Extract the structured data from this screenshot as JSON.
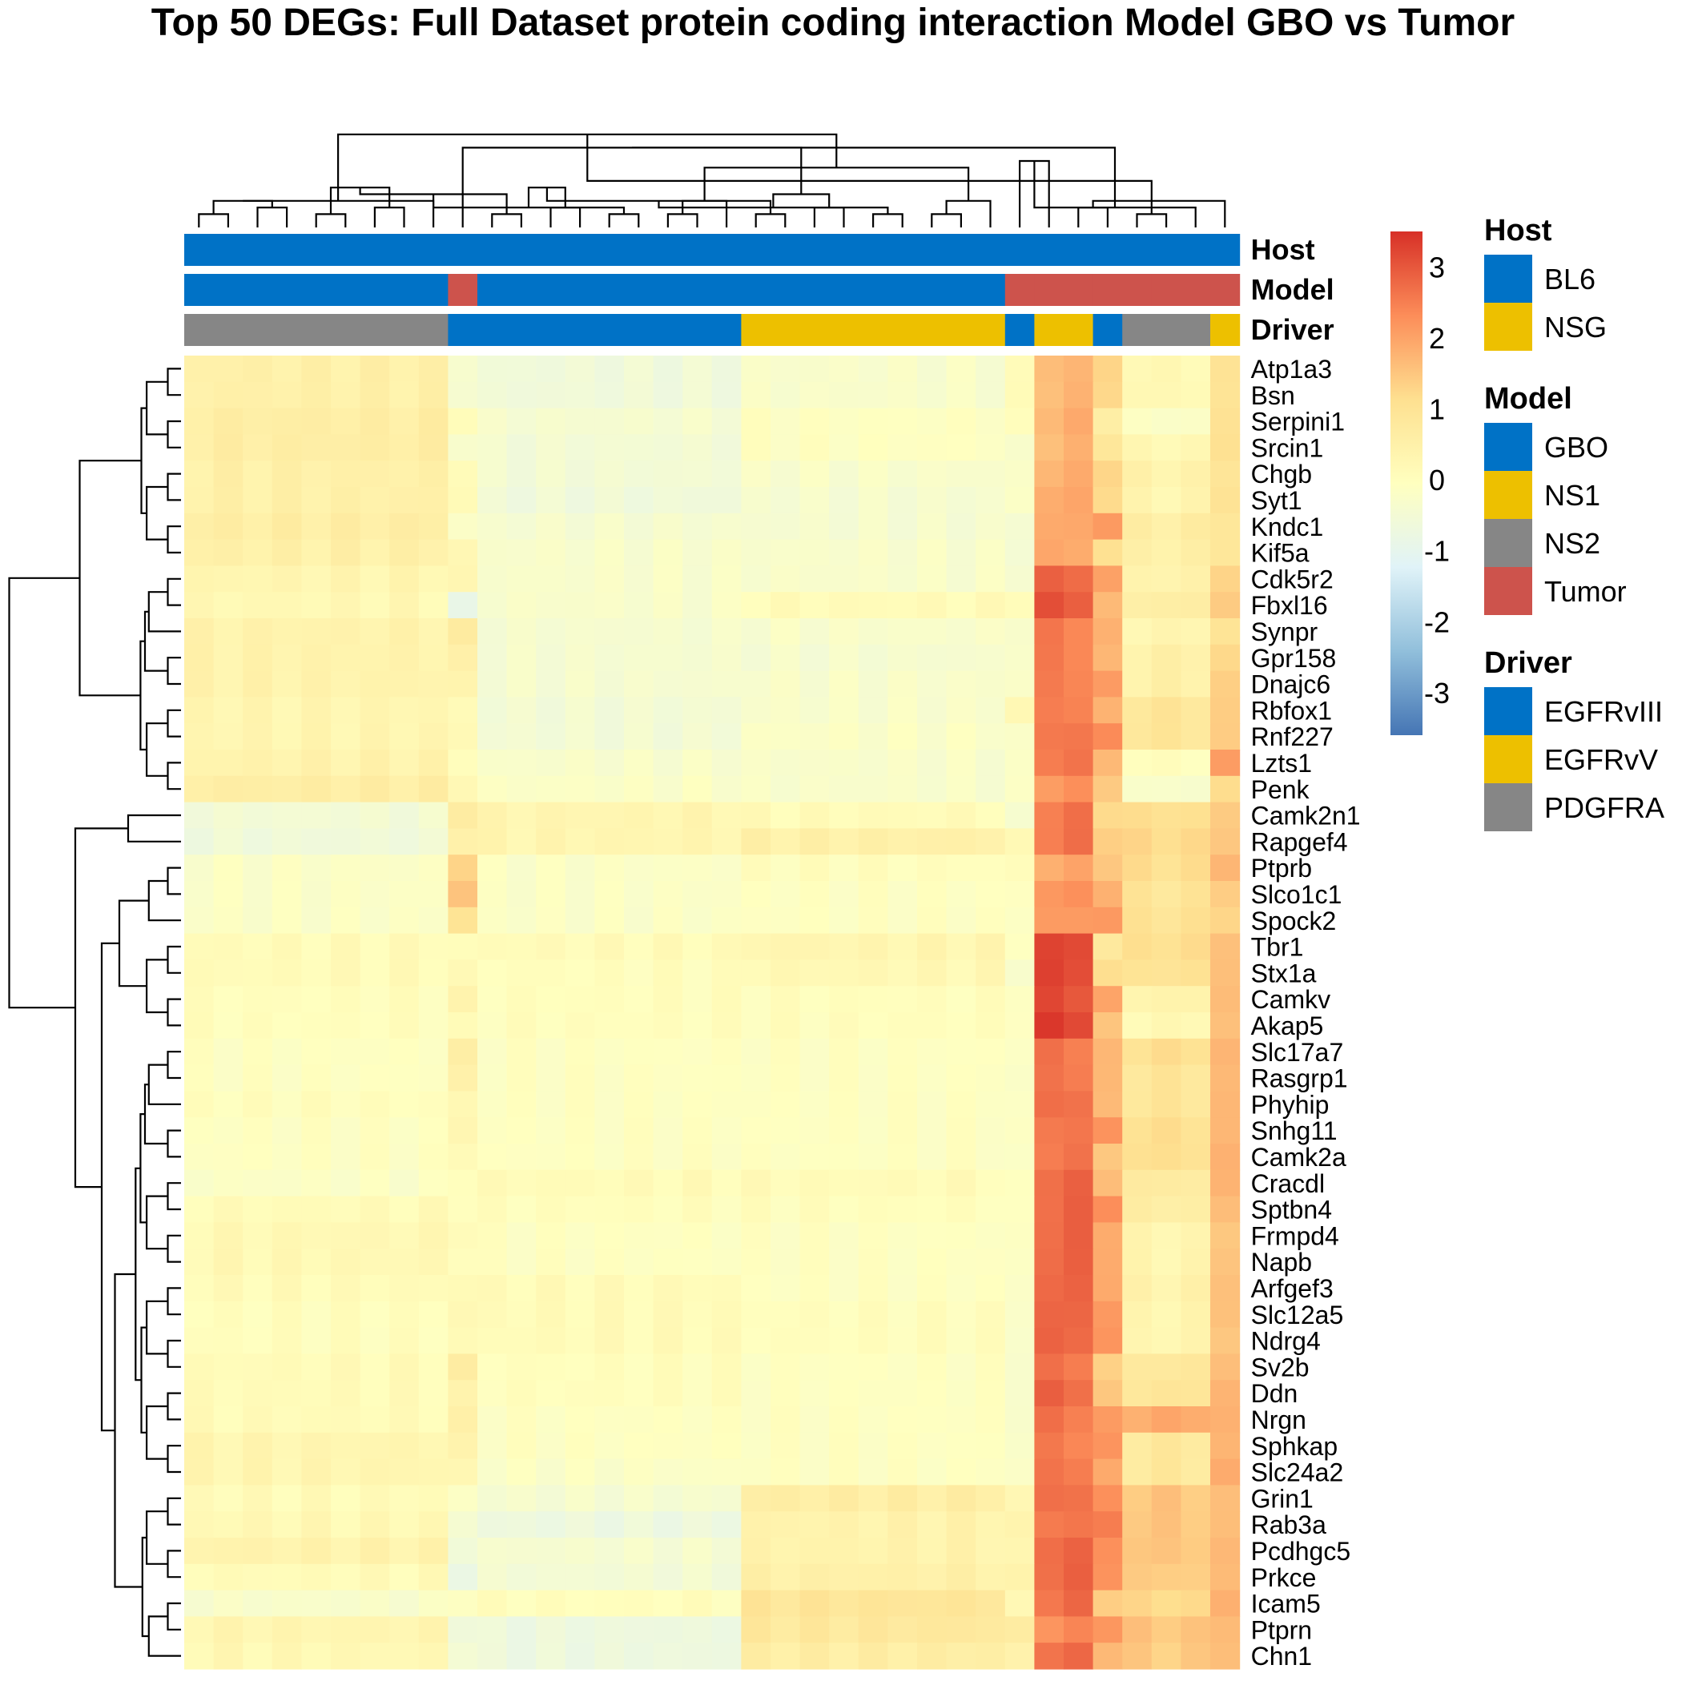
{
  "title": "Top 50 DEGs: Full Dataset protein coding interaction Model GBO vs Tumor",
  "chart_data": {
    "type": "heatmap",
    "title": "Top 50 DEGs: Full Dataset protein coding interaction Model GBO vs Tumor",
    "n_columns": 36,
    "rows": [
      "Atp1a3",
      "Bsn",
      "Serpini1",
      "Srcin1",
      "Chgb",
      "Syt1",
      "Kndc1",
      "Kif5a",
      "Cdk5r2",
      "Fbxl16",
      "Synpr",
      "Gpr158",
      "Dnajc6",
      "Rbfox1",
      "Rnf227",
      "Lzts1",
      "Penk",
      "Camk2n1",
      "Rapgef4",
      "Ptprb",
      "Slco1c1",
      "Spock2",
      "Tbr1",
      "Stx1a",
      "Camkv",
      "Akap5",
      "Slc17a7",
      "Rasgrp1",
      "Phyhip",
      "Snhg11",
      "Camk2a",
      "Cracdl",
      "Sptbn4",
      "Frmpd4",
      "Napb",
      "Arfgef3",
      "Slc12a5",
      "Ndrg4",
      "Sv2b",
      "Ddn",
      "Nrgn",
      "Sphkap",
      "Slc24a2",
      "Grin1",
      "Rab3a",
      "Pcdhgc5",
      "Prkce",
      "Icam5",
      "Ptprn",
      "Chn1"
    ],
    "group_boundaries": [
      9,
      10,
      19,
      28,
      29,
      31,
      32,
      35
    ],
    "group_means": [
      [
        0.5,
        -0.3,
        -0.6,
        -0.3,
        0.0,
        1.7,
        1.3,
        0.2,
        0.9,
        1.0,
        0.9
      ],
      [
        0.5,
        -0.3,
        -0.6,
        -0.3,
        0.0,
        1.7,
        1.3,
        0.2,
        0.9,
        1.0,
        0.9
      ],
      [
        0.6,
        0.2,
        -0.4,
        -0.1,
        -0.1,
        1.8,
        0.7,
        -0.2,
        1.0,
        1.1,
        1.1
      ],
      [
        0.6,
        -0.2,
        -0.5,
        -0.1,
        -0.4,
        1.7,
        1.0,
        0.2,
        1.1,
        1.2,
        1.2
      ],
      [
        0.5,
        0.2,
        -0.5,
        -0.3,
        -0.3,
        1.8,
        1.4,
        0.4,
        1.0,
        1.1,
        1.0
      ],
      [
        0.5,
        0.2,
        -0.6,
        -0.4,
        -0.2,
        1.9,
        1.3,
        0.3,
        1.1,
        1.1,
        1.1
      ],
      [
        0.6,
        -0.2,
        -0.4,
        -0.4,
        -0.4,
        1.9,
        2.2,
        0.6,
        1.0,
        1.1,
        1.0
      ],
      [
        0.5,
        0.2,
        -0.3,
        -0.3,
        -0.4,
        1.9,
        1.1,
        0.5,
        1.0,
        1.1,
        1.0
      ],
      [
        0.3,
        0.2,
        -0.3,
        -0.3,
        -0.3,
        2.8,
        2.0,
        0.4,
        1.4,
        1.1,
        0.5
      ],
      [
        0.2,
        -1.0,
        -0.3,
        0.1,
        0.2,
        3.0,
        1.6,
        0.6,
        1.5,
        1.2,
        0.8
      ],
      [
        0.4,
        0.6,
        -0.4,
        -0.3,
        -0.2,
        2.5,
        1.7,
        0.3,
        1.0,
        1.5,
        1.1
      ],
      [
        0.4,
        0.4,
        -0.4,
        -0.4,
        -0.2,
        2.5,
        1.6,
        0.5,
        1.2,
        1.4,
        1.3
      ],
      [
        0.4,
        0.3,
        -0.4,
        -0.3,
        -0.2,
        2.5,
        2.0,
        0.5,
        1.3,
        1.4,
        1.3
      ],
      [
        0.3,
        0.1,
        -0.5,
        -0.3,
        0.2,
        2.5,
        1.7,
        0.9,
        1.3,
        1.4,
        1.2
      ],
      [
        0.3,
        0.2,
        -0.5,
        -0.2,
        -0.3,
        2.6,
        2.3,
        0.9,
        1.3,
        1.4,
        1.2
      ],
      [
        0.4,
        0.1,
        -0.3,
        -0.3,
        -0.3,
        2.6,
        1.7,
        0.0,
        2.0,
        1.2,
        1.0
      ],
      [
        0.6,
        0.3,
        -0.2,
        -0.3,
        -0.3,
        2.2,
        1.5,
        -0.3,
        1.1,
        1.4,
        1.4
      ],
      [
        -0.5,
        0.8,
        0.3,
        0.1,
        -0.5,
        2.6,
        1.3,
        1.1,
        1.4,
        1.3,
        0.9
      ],
      [
        -0.6,
        0.6,
        0.3,
        0.5,
        0.1,
        2.6,
        1.5,
        1.2,
        1.5,
        1.3,
        0.7
      ],
      [
        -0.2,
        1.4,
        -0.2,
        0.0,
        0.0,
        1.9,
        1.6,
        1.1,
        1.8,
        1.4,
        1.2
      ],
      [
        -0.2,
        1.6,
        -0.2,
        -0.1,
        -0.1,
        2.2,
        1.9,
        0.9,
        1.5,
        1.4,
        1.2
      ],
      [
        -0.2,
        1.0,
        -0.2,
        -0.1,
        -0.1,
        2.1,
        2.2,
        1.0,
        1.4,
        1.4,
        1.3
      ],
      [
        0.1,
        0.0,
        0.1,
        0.3,
        0.0,
        3.2,
        0.8,
        1.1,
        1.7,
        1.4,
        0.4
      ],
      [
        0.1,
        0.1,
        0.0,
        0.2,
        -0.2,
        3.2,
        1.1,
        1.0,
        1.7,
        1.3,
        0.4
      ],
      [
        0.0,
        0.3,
        0.0,
        0.0,
        0.0,
        3.1,
        1.9,
        0.4,
        1.7,
        1.4,
        0.8
      ],
      [
        0.0,
        0.0,
        0.0,
        0.0,
        0.0,
        3.3,
        1.4,
        0.2,
        1.6,
        1.4,
        0.8
      ],
      [
        -0.1,
        0.5,
        -0.1,
        -0.1,
        -0.1,
        2.6,
        1.6,
        1.1,
        1.7,
        1.5,
        1.9
      ],
      [
        -0.1,
        0.4,
        -0.1,
        -0.1,
        -0.2,
        2.6,
        1.6,
        0.9,
        1.6,
        1.5,
        1.6
      ],
      [
        0.0,
        0.2,
        -0.1,
        -0.1,
        -0.2,
        2.7,
        1.6,
        0.9,
        1.6,
        1.5,
        1.3
      ],
      [
        -0.1,
        0.3,
        -0.1,
        -0.1,
        -0.2,
        2.6,
        2.2,
        1.1,
        1.6,
        1.6,
        1.1
      ],
      [
        -0.1,
        0.2,
        -0.1,
        -0.1,
        -0.3,
        2.6,
        1.5,
        1.1,
        1.7,
        1.5,
        1.1
      ],
      [
        -0.2,
        0.1,
        0.1,
        0.1,
        -0.2,
        2.8,
        1.7,
        0.7,
        1.7,
        1.6,
        1.0
      ],
      [
        0.1,
        0.1,
        0.0,
        0.0,
        -0.2,
        2.8,
        2.4,
        0.6,
        1.6,
        1.6,
        1.2
      ],
      [
        0.2,
        0.2,
        -0.1,
        -0.1,
        -0.2,
        2.8,
        2.0,
        0.3,
        1.5,
        1.6,
        1.4
      ],
      [
        0.2,
        0.1,
        -0.1,
        -0.1,
        -0.2,
        2.8,
        2.0,
        0.3,
        1.6,
        1.6,
        1.9
      ],
      [
        0.1,
        0.2,
        0.1,
        -0.1,
        -0.2,
        2.8,
        2.0,
        0.4,
        1.7,
        1.6,
        1.7
      ],
      [
        0.0,
        0.2,
        0.1,
        0.0,
        -0.2,
        2.8,
        2.2,
        0.3,
        1.7,
        1.6,
        1.5
      ],
      [
        0.0,
        0.1,
        0.1,
        0.0,
        -0.2,
        2.8,
        2.2,
        0.3,
        1.6,
        1.5,
        1.4
      ],
      [
        0.1,
        0.6,
        0.0,
        -0.1,
        -0.2,
        2.6,
        1.3,
        0.8,
        1.7,
        1.6,
        2.1
      ],
      [
        0.1,
        0.3,
        0.0,
        -0.1,
        -0.2,
        2.8,
        1.4,
        0.9,
        1.8,
        1.6,
        1.6
      ],
      [
        0.1,
        0.4,
        -0.1,
        -0.1,
        -0.2,
        2.6,
        2.0,
        1.9,
        1.8,
        1.6,
        1.5
      ],
      [
        0.3,
        0.3,
        -0.1,
        -0.1,
        -0.2,
        2.5,
        2.1,
        0.8,
        1.7,
        1.6,
        1.4
      ],
      [
        0.3,
        0.2,
        -0.2,
        -0.1,
        -0.2,
        2.6,
        1.8,
        0.8,
        1.8,
        1.7,
        1.3
      ],
      [
        0.1,
        -0.2,
        -0.4,
        0.6,
        0.2,
        2.7,
        2.2,
        1.5,
        1.5,
        1.4,
        1.3
      ],
      [
        0.2,
        -0.4,
        -0.7,
        0.4,
        0.3,
        2.6,
        2.5,
        1.5,
        1.5,
        1.5,
        1.2
      ],
      [
        0.4,
        -0.5,
        -0.4,
        0.4,
        0.2,
        2.8,
        2.3,
        1.5,
        1.6,
        1.5,
        1.3
      ],
      [
        0.1,
        -0.7,
        -0.5,
        0.5,
        0.3,
        2.8,
        2.3,
        1.4,
        1.6,
        1.5,
        2.1
      ],
      [
        -0.3,
        0.0,
        0.0,
        0.9,
        0.1,
        2.7,
        1.5,
        1.2,
        1.8,
        1.6,
        1.3
      ],
      [
        0.3,
        -0.5,
        -0.7,
        0.8,
        0.6,
        2.3,
        2.3,
        1.5,
        1.7,
        1.5,
        1.5
      ],
      [
        0.2,
        -0.4,
        -0.7,
        0.6,
        0.4,
        2.7,
        1.8,
        1.4,
        1.7,
        1.5,
        1.4
      ]
    ],
    "annotations": {
      "Host": [
        "BL6",
        "BL6",
        "BL6",
        "BL6",
        "BL6",
        "BL6",
        "BL6",
        "BL6",
        "BL6",
        "BL6",
        "BL6",
        "BL6",
        "BL6",
        "BL6",
        "BL6",
        "BL6",
        "BL6",
        "BL6",
        "BL6",
        "BL6",
        "BL6",
        "BL6",
        "BL6",
        "BL6",
        "BL6",
        "BL6",
        "BL6",
        "BL6",
        "BL6",
        "BL6",
        "BL6",
        "BL6",
        "BL6",
        "BL6",
        "BL6",
        "BL6"
      ],
      "Model": [
        "GBO",
        "GBO",
        "GBO",
        "GBO",
        "GBO",
        "GBO",
        "GBO",
        "GBO",
        "GBO",
        "Tumor",
        "GBO",
        "GBO",
        "GBO",
        "GBO",
        "GBO",
        "GBO",
        "GBO",
        "GBO",
        "GBO",
        "GBO",
        "GBO",
        "GBO",
        "GBO",
        "GBO",
        "GBO",
        "GBO",
        "GBO",
        "GBO",
        "Tumor",
        "Tumor",
        "Tumor",
        "Tumor",
        "Tumor",
        "Tumor",
        "Tumor",
        "Tumor"
      ],
      "Driver": [
        "PDGFRA",
        "PDGFRA",
        "PDGFRA",
        "PDGFRA",
        "PDGFRA",
        "PDGFRA",
        "PDGFRA",
        "PDGFRA",
        "PDGFRA",
        "EGFRvIII",
        "EGFRvIII",
        "EGFRvIII",
        "EGFRvIII",
        "EGFRvIII",
        "EGFRvIII",
        "EGFRvIII",
        "EGFRvIII",
        "EGFRvIII",
        "EGFRvIII",
        "EGFRvV",
        "EGFRvV",
        "EGFRvV",
        "EGFRvV",
        "EGFRvV",
        "EGFRvV",
        "EGFRvV",
        "EGFRvV",
        "EGFRvV",
        "EGFRvIII",
        "EGFRvV",
        "EGFRvV",
        "EGFRvIII",
        "PDGFRA",
        "PDGFRA",
        "PDGFRA",
        "EGFRvV"
      ]
    },
    "annotation_labels": [
      "Host",
      "Model",
      "Driver"
    ],
    "color_scale": {
      "min": -3.6,
      "max": 3.5,
      "ticks": [
        3,
        2,
        1,
        0,
        -1,
        -2,
        -3
      ],
      "tick_labels": [
        "3",
        "2",
        "1",
        "0",
        "-1",
        "-2",
        "-3"
      ],
      "colors": [
        "#4575B4",
        "#91BFDB",
        "#E0F3F8",
        "#FFFFBF",
        "#FEE090",
        "#FC8D59",
        "#D73027"
      ]
    },
    "legend": {
      "position": "right",
      "groups": [
        {
          "title": "Host",
          "items": [
            {
              "label": "BL6",
              "color": "#0072C6"
            },
            {
              "label": "NSG",
              "color": "#EDC000"
            }
          ]
        },
        {
          "title": "Model",
          "items": [
            {
              "label": "GBO",
              "color": "#0072C6"
            },
            {
              "label": "NS1",
              "color": "#EDC000"
            },
            {
              "label": "NS2",
              "color": "#868686"
            },
            {
              "label": "Tumor",
              "color": "#CD534C"
            }
          ]
        },
        {
          "title": "Driver",
          "items": [
            {
              "label": "EGFRvIII",
              "color": "#0072C6"
            },
            {
              "label": "EGFRvV",
              "color": "#EDC000"
            },
            {
              "label": "PDGFRA",
              "color": "#868686"
            }
          ]
        }
      ]
    },
    "annotation_colors": {
      "BL6": "#0072C6",
      "NSG": "#EDC000",
      "GBO": "#0072C6",
      "NS1": "#EDC000",
      "NS2": "#868686",
      "Tumor": "#CD534C",
      "EGFRvIII": "#0072C6",
      "EGFRvV": "#EDC000",
      "PDGFRA": "#868686"
    }
  }
}
